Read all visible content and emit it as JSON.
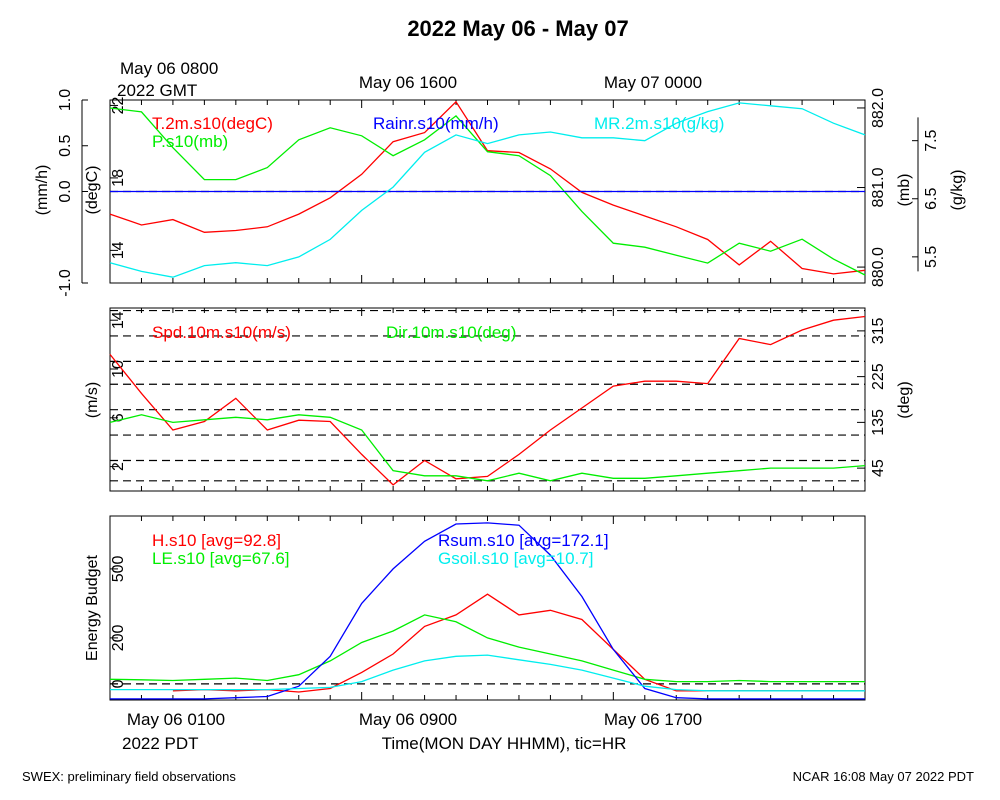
{
  "title": "2022 May 06 - May 07",
  "top_time_labels": {
    "start": "May 06 0800",
    "start_sub": "2022 GMT",
    "mid": "May 06 1600",
    "end": "May 07 0000"
  },
  "bottom_time_labels": {
    "start": "May 06 0100",
    "start_sub": "2022 PDT",
    "mid": "May 06 0900",
    "end": "May 06 1700"
  },
  "xlabel": "Time(MON DAY HHMM), tic=HR",
  "footer": {
    "left": "SWEX: preliminary field observations",
    "right": "NCAR 16:08 May 07 2022 PDT"
  },
  "colors": {
    "red": "#ff0000",
    "green": "#00ee00",
    "blue": "#0000ff",
    "cyan": "#00eeee",
    "axis": "#000000"
  },
  "chart_data": [
    {
      "type": "line",
      "name": "panel-1",
      "x_hours_pdt": [
        0,
        24
      ],
      "axes": {
        "rain": {
          "label": "(mm/h)",
          "range": [
            -1.0,
            1.0
          ],
          "ticks": [
            "-1.0",
            "0.0",
            "0.5",
            "1.0"
          ]
        },
        "temp": {
          "label": "(degC)",
          "range": [
            12.2,
            22.3
          ],
          "ticks": [
            "14",
            "18",
            "22"
          ]
        },
        "pres": {
          "label": "(mb)",
          "range": [
            879.8,
            882.1
          ],
          "ticks": [
            "880.0",
            "881.0",
            "882.0"
          ]
        },
        "mr": {
          "label": "(g/kg)",
          "range": [
            5.05,
            8.2
          ],
          "ticks": [
            "5.5",
            "6.5",
            "7.5"
          ]
        }
      },
      "legend": [
        {
          "text": "T.2m.s10(degC)",
          "color": "red"
        },
        {
          "text": "P.s10(mb)",
          "color": "green"
        },
        {
          "text": "Rainr.s10(mm/h)",
          "color": "blue"
        },
        {
          "text": "MR.2m.s10(g/kg)",
          "color": "cyan"
        }
      ],
      "series": [
        {
          "name": "T.2m.s10(degC)",
          "color": "red",
          "axis": "temp",
          "x": [
            0,
            1,
            2,
            3,
            4,
            5,
            6,
            7,
            8,
            9,
            10,
            11,
            12,
            13,
            14,
            15,
            16,
            17,
            18,
            19,
            20,
            21,
            22,
            23,
            24
          ],
          "y": [
            16.0,
            15.4,
            15.7,
            15.0,
            15.1,
            15.3,
            16.0,
            16.9,
            18.2,
            20.0,
            20.5,
            22.2,
            19.5,
            19.4,
            18.5,
            17.2,
            16.5,
            15.9,
            15.3,
            14.6,
            13.2,
            14.5,
            13.0,
            12.7,
            12.9
          ]
        },
        {
          "name": "P.s10(mb)",
          "color": "green",
          "axis": "pres",
          "x": [
            0,
            1,
            2,
            3,
            4,
            5,
            6,
            7,
            8,
            9,
            10,
            11,
            12,
            13,
            14,
            15,
            16,
            17,
            18,
            19,
            20,
            21,
            22,
            23,
            24
          ],
          "y": [
            882.0,
            881.95,
            881.5,
            881.1,
            881.1,
            881.25,
            881.6,
            881.75,
            881.65,
            881.4,
            881.6,
            881.9,
            881.45,
            881.4,
            881.15,
            880.7,
            880.3,
            880.25,
            880.15,
            880.05,
            880.3,
            880.2,
            880.35,
            880.1,
            879.9
          ]
        },
        {
          "name": "Rainr.s10(mm/h)",
          "color": "blue",
          "axis": "rain",
          "x": [
            0,
            24
          ],
          "y": [
            0.0,
            0.0
          ]
        },
        {
          "name": "MR.2m.s10(g/kg)",
          "color": "cyan",
          "axis": "mr",
          "x": [
            0,
            1,
            2,
            3,
            4,
            5,
            6,
            7,
            8,
            9,
            10,
            11,
            12,
            13,
            14,
            15,
            16,
            17,
            18,
            19,
            20,
            21,
            22,
            23,
            24
          ],
          "y": [
            5.4,
            5.25,
            5.15,
            5.35,
            5.4,
            5.35,
            5.5,
            5.8,
            6.3,
            6.7,
            7.3,
            7.6,
            7.45,
            7.6,
            7.65,
            7.55,
            7.55,
            7.5,
            7.8,
            8.0,
            8.15,
            8.1,
            8.05,
            7.8,
            7.6
          ]
        }
      ]
    },
    {
      "type": "line",
      "name": "panel-2",
      "axes": {
        "spd": {
          "label": "(m/s)",
          "range": [
            0,
            15
          ],
          "ticks": [
            "2",
            "6",
            "10",
            "14"
          ]
        },
        "dir": {
          "label": "(deg)",
          "range": [
            0,
            360
          ],
          "ticks": [
            "45",
            "135",
            "225",
            "315"
          ]
        }
      },
      "dir_gridlines": [
        20,
        60,
        110,
        160,
        210,
        255,
        305,
        355
      ],
      "legend": [
        {
          "text": "Spd.10m.s10(m/s)",
          "color": "red"
        },
        {
          "text": "Dir.10m.s10(deg)",
          "color": "green"
        }
      ],
      "series": [
        {
          "name": "Spd.10m.s10(m/s)",
          "color": "red",
          "axis": "spd",
          "x": [
            0,
            1,
            2,
            3,
            4,
            5,
            6,
            7,
            8,
            9,
            10,
            11,
            12,
            13,
            14,
            15,
            16,
            17,
            18,
            19,
            20,
            21,
            22,
            23,
            24
          ],
          "y": [
            11.2,
            8.0,
            5.0,
            5.7,
            7.6,
            5.0,
            5.8,
            5.7,
            3.0,
            0.5,
            2.5,
            1.0,
            1.2,
            3.0,
            5.0,
            6.8,
            8.6,
            9.0,
            9.0,
            8.8,
            12.5,
            12.0,
            13.2,
            14.0,
            14.3
          ]
        },
        {
          "name": "Dir.10m.s10(deg)",
          "color": "green",
          "axis": "dir",
          "x": [
            0,
            1,
            2,
            3,
            4,
            5,
            6,
            7,
            8,
            9,
            10,
            11,
            12,
            13,
            14,
            15,
            16,
            17,
            18,
            19,
            20,
            21,
            22,
            23,
            24
          ],
          "y": [
            135,
            150,
            135,
            140,
            145,
            140,
            150,
            145,
            120,
            40,
            30,
            30,
            20,
            35,
            20,
            35,
            25,
            25,
            30,
            35,
            40,
            45,
            45,
            45,
            50
          ]
        }
      ]
    },
    {
      "type": "line",
      "name": "panel-3",
      "ylabel": "Energy Budget",
      "axes": {
        "energy": {
          "range": [
            -70,
            730
          ],
          "ticks": [
            "0",
            "200",
            "500"
          ]
        }
      },
      "legend": [
        {
          "text": "H.s10 [avg=92.8]",
          "color": "red"
        },
        {
          "text": "LE.s10 [avg=67.6]",
          "color": "green"
        },
        {
          "text": "Rsum.s10 [avg=172.1]",
          "color": "blue"
        },
        {
          "text": "Gsoil.s10 [avg=10.7]",
          "color": "cyan"
        }
      ],
      "series": [
        {
          "name": "H.s10 [avg=92.8]",
          "color": "red",
          "axis": "energy",
          "x": [
            2,
            3,
            4,
            5,
            6,
            7,
            8,
            9,
            10,
            11,
            12,
            13,
            14,
            15,
            16,
            17,
            18,
            19,
            20,
            21,
            22,
            23,
            24
          ],
          "y": [
            -30,
            -25,
            -30,
            -25,
            -35,
            -20,
            50,
            130,
            250,
            300,
            390,
            300,
            320,
            280,
            150,
            20,
            -30,
            -30,
            -30,
            -30,
            -30,
            -30,
            -30
          ]
        },
        {
          "name": "LE.s10 [avg=67.6]",
          "color": "green",
          "axis": "energy",
          "x": [
            0,
            1,
            2,
            3,
            4,
            5,
            6,
            7,
            8,
            9,
            10,
            11,
            12,
            13,
            14,
            15,
            16,
            17,
            18,
            19,
            20,
            21,
            22,
            23,
            24
          ],
          "y": [
            20,
            18,
            15,
            20,
            25,
            15,
            40,
            100,
            180,
            230,
            300,
            270,
            200,
            160,
            130,
            100,
            60,
            20,
            10,
            10,
            15,
            10,
            10,
            10,
            10
          ]
        },
        {
          "name": "Rsum.s10 [avg=172.1]",
          "color": "blue",
          "axis": "energy",
          "x": [
            0,
            1,
            2,
            3,
            4,
            5,
            6,
            7,
            8,
            9,
            10,
            11,
            12,
            13,
            14,
            15,
            16,
            17,
            18,
            19,
            20,
            21,
            22,
            23,
            24
          ],
          "y": [
            -65,
            -65,
            -65,
            -65,
            -60,
            -55,
            -10,
            120,
            350,
            500,
            620,
            695,
            700,
            690,
            560,
            380,
            150,
            -20,
            -60,
            -65,
            -65,
            -65,
            -65,
            -65,
            -65
          ]
        },
        {
          "name": "Gsoil.s10 [avg=10.7]",
          "color": "cyan",
          "axis": "energy",
          "x": [
            0,
            1,
            2,
            3,
            4,
            5,
            6,
            7,
            8,
            9,
            10,
            11,
            12,
            13,
            14,
            15,
            16,
            17,
            18,
            19,
            20,
            21,
            22,
            23,
            24
          ],
          "y": [
            -25,
            -25,
            -25,
            -25,
            -25,
            -25,
            -20,
            -15,
            10,
            60,
            100,
            120,
            125,
            105,
            85,
            60,
            25,
            -10,
            -25,
            -30,
            -30,
            -30,
            -30,
            -30,
            -30
          ]
        }
      ]
    }
  ]
}
